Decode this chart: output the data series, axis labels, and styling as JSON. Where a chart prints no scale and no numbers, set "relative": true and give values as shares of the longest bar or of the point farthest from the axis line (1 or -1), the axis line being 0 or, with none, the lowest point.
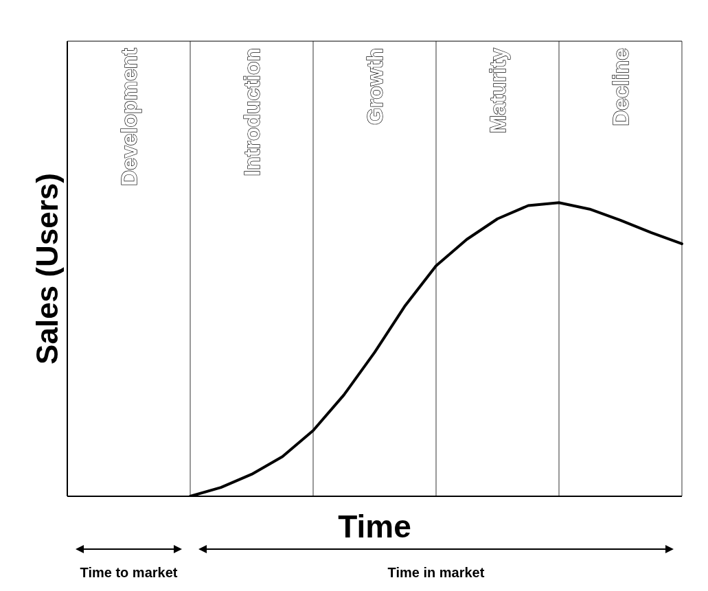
{
  "chart_data": {
    "type": "line",
    "relative": true,
    "xlabel": "Time",
    "ylabel": "Sales (Users)",
    "color": "#000000",
    "grid": "x",
    "categories": [
      null,
      null,
      null,
      null,
      null,
      null,
      null,
      null,
      null,
      null,
      null,
      null,
      null,
      null,
      null,
      null,
      null
    ],
    "values": [
      0,
      0.03,
      0.075,
      0.135,
      0.224,
      0.345,
      0.49,
      0.65,
      0.785,
      0.875,
      0.945,
      0.99,
      1,
      0.978,
      0.94,
      0.898,
      0.86
    ],
    "annotations": [
      "Development",
      "Introduction",
      "Growth",
      "Maturity",
      "Decline",
      "Time to market",
      "Time in market"
    ]
  }
}
